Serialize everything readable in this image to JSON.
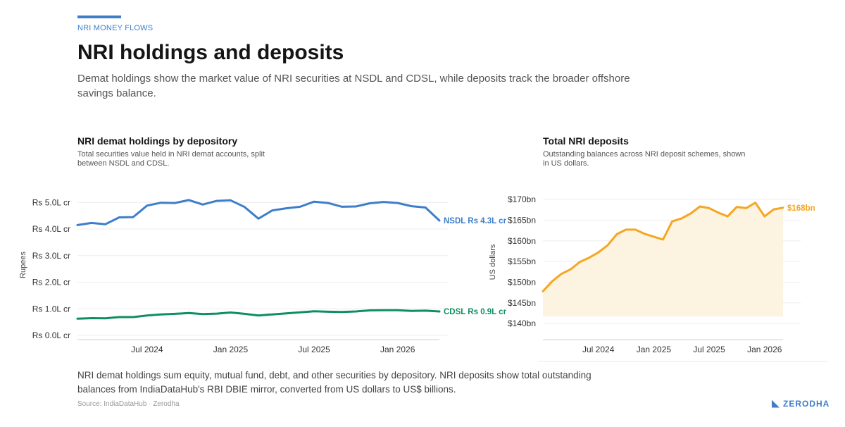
{
  "header": {
    "kicker": "NRI MONEY FLOWS",
    "title": "NRI holdings and deposits",
    "subtitle": "Demat holdings show the market value of NRI securities at NSDL and CDSL, while deposits track the broader offshore savings balance."
  },
  "colors": {
    "accent": "#3d7ecb",
    "nsdl": "#3d7ecb",
    "cdsl": "#0f8f5f",
    "deposits": "#f5a623",
    "deposits_fill": "#fdf3e1"
  },
  "chart_data": [
    {
      "type": "line",
      "title": "NRI demat holdings by depository",
      "subtitle": "Total securities value held in NRI demat accounts, split between NSDL and CDSL.",
      "ylabel": "Rupees",
      "y_unit": "lakh crore rupees",
      "ylim": [
        0,
        5.3
      ],
      "y_ticks": [
        0,
        1,
        2,
        3,
        4,
        5
      ],
      "y_tick_labels": [
        "Rs 0.0L cr",
        "Rs 1.0L cr",
        "Rs 2.0L cr",
        "Rs 3.0L cr",
        "Rs 4.0L cr",
        "Rs 5.0L cr"
      ],
      "x_ticks": [
        "2024-07",
        "2025-01",
        "2025-07",
        "2026-01"
      ],
      "x_tick_labels": [
        "Jul 2024",
        "Jan 2025",
        "Jul 2025",
        "Jan 2026"
      ],
      "grid": true,
      "x": [
        "2024-02",
        "2024-03",
        "2024-04",
        "2024-05",
        "2024-06",
        "2024-07",
        "2024-08",
        "2024-09",
        "2024-10",
        "2024-11",
        "2024-12",
        "2025-01",
        "2025-02",
        "2025-03",
        "2025-04",
        "2025-05",
        "2025-06",
        "2025-07",
        "2025-08",
        "2025-09",
        "2025-10",
        "2025-11",
        "2025-12",
        "2026-01",
        "2026-02",
        "2026-03",
        "2026-04"
      ],
      "series": [
        {
          "name": "NSDL",
          "end_label": "NSDL Rs 4.3L cr",
          "values": [
            4.15,
            4.23,
            4.18,
            4.44,
            4.45,
            4.88,
            4.99,
            4.98,
            5.09,
            4.92,
            5.06,
            5.08,
            4.83,
            4.39,
            4.7,
            4.78,
            4.84,
            5.03,
            4.98,
            4.84,
            4.85,
            4.97,
            5.02,
            4.98,
            4.86,
            4.81,
            4.32
          ]
        },
        {
          "name": "CDSL",
          "end_label": "CDSL Rs 0.9L cr",
          "values": [
            0.63,
            0.65,
            0.64,
            0.69,
            0.69,
            0.75,
            0.79,
            0.81,
            0.84,
            0.8,
            0.82,
            0.86,
            0.81,
            0.75,
            0.79,
            0.83,
            0.87,
            0.91,
            0.89,
            0.88,
            0.9,
            0.94,
            0.95,
            0.95,
            0.92,
            0.93,
            0.9
          ]
        }
      ]
    },
    {
      "type": "area",
      "title": "Total NRI deposits",
      "subtitle": "Outstanding balances across NRI deposit schemes, shown in US dollars.",
      "ylabel": "US dollars",
      "y_unit": "US$ billion",
      "ylim": [
        138.5,
        171.2
      ],
      "y_ticks": [
        140,
        145,
        150,
        155,
        160,
        165,
        170
      ],
      "y_tick_labels": [
        "$140bn",
        "$145bn",
        "$150bn",
        "$155bn",
        "$160bn",
        "$165bn",
        "$170bn"
      ],
      "x_ticks": [
        "2024-07",
        "2025-01",
        "2025-07",
        "2026-01"
      ],
      "x_tick_labels": [
        "Jul 2024",
        "Jan 2025",
        "Jul 2025",
        "Jan 2026"
      ],
      "grid": true,
      "x": [
        "2024-01",
        "2024-02",
        "2024-03",
        "2024-04",
        "2024-05",
        "2024-06",
        "2024-07",
        "2024-08",
        "2024-09",
        "2024-10",
        "2024-11",
        "2024-12",
        "2025-01",
        "2025-02",
        "2025-03",
        "2025-04",
        "2025-05",
        "2025-06",
        "2025-07",
        "2025-08",
        "2025-09",
        "2025-10",
        "2025-11",
        "2025-12",
        "2026-01",
        "2026-02",
        "2026-03"
      ],
      "series": [
        {
          "name": "Total NRI deposits",
          "end_label": "$168bn",
          "values": [
            147.8,
            150.2,
            152.0,
            153.1,
            154.9,
            155.9,
            157.2,
            158.9,
            161.6,
            162.7,
            162.7,
            161.7,
            161.0,
            160.3,
            164.7,
            165.4,
            166.6,
            168.3,
            167.9,
            166.8,
            165.9,
            168.2,
            167.9,
            169.2,
            165.9,
            167.6,
            168.0
          ]
        }
      ]
    }
  ],
  "footer": {
    "note": "NRI demat holdings sum equity, mutual fund, debt, and other securities by depository. NRI deposits show total outstanding balances from IndiaDataHub's RBI DBIE mirror, converted from US dollars to US$ billions.",
    "source": "Source: IndiaDataHub · Zerodha",
    "brand": "ZERODHA"
  }
}
